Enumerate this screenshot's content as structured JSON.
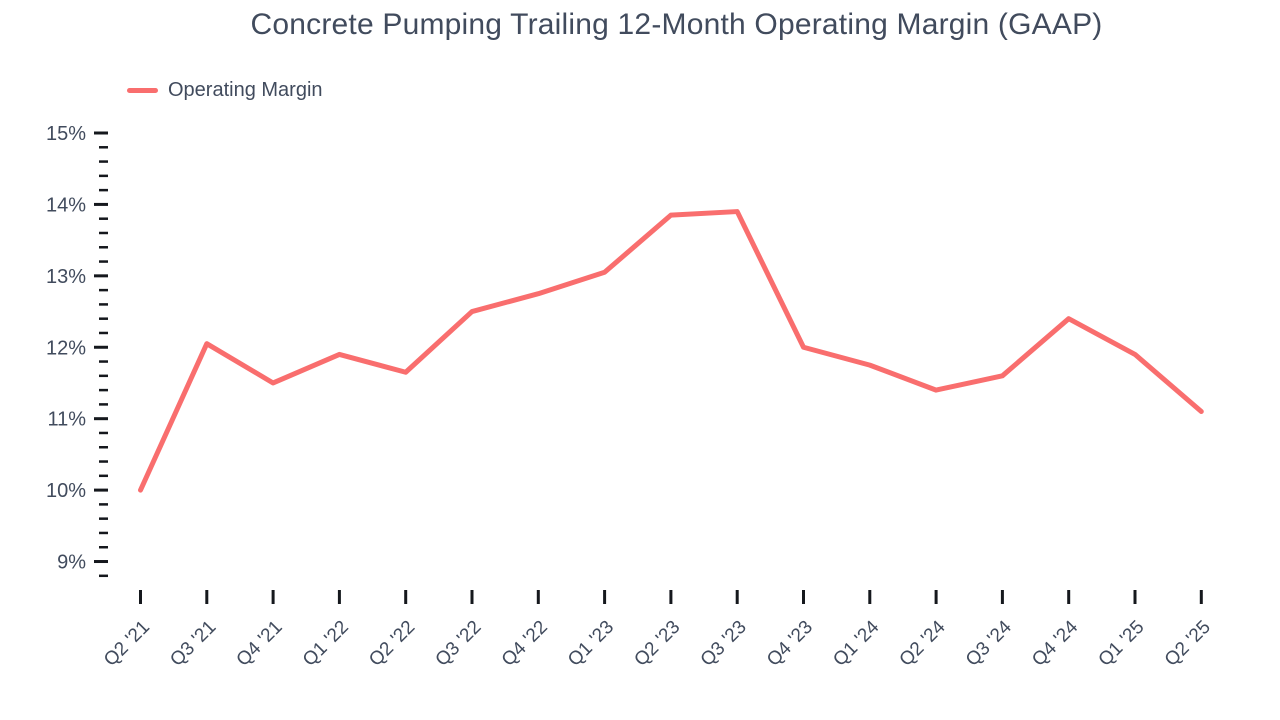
{
  "colors": {
    "line": "#f96e6e",
    "text": "#414b5d",
    "tick": "#15181d",
    "background": "#ffffff"
  },
  "chart_data": {
    "type": "line",
    "title": "Concrete Pumping Trailing 12-Month Operating Margin (GAAP)",
    "xlabel": "",
    "ylabel": "",
    "categories": [
      "Q2 '21",
      "Q3 '21",
      "Q4 '21",
      "Q1 '22",
      "Q2 '22",
      "Q3 '22",
      "Q4 '22",
      "Q1 '23",
      "Q2 '23",
      "Q3 '23",
      "Q4 '23",
      "Q1 '24",
      "Q2 '24",
      "Q3 '24",
      "Q4 '24",
      "Q1 '25",
      "Q2 '25"
    ],
    "series": [
      {
        "name": "Operating Margin",
        "values": [
          10.0,
          12.05,
          11.5,
          11.9,
          11.65,
          12.5,
          12.75,
          13.05,
          13.85,
          13.9,
          12.0,
          11.75,
          11.4,
          11.6,
          12.4,
          11.9,
          11.1
        ]
      }
    ],
    "y_tick_labels": [
      "15%",
      "14%",
      "13%",
      "12%",
      "11%",
      "10%",
      "9%"
    ],
    "y_tick_values": [
      15,
      14,
      13,
      12,
      11,
      10,
      9
    ],
    "y_minor_step": 0.2,
    "ylim": [
      8.8,
      15
    ],
    "unit": "%",
    "grid": false,
    "legend_position": "top-left",
    "markers": false
  }
}
